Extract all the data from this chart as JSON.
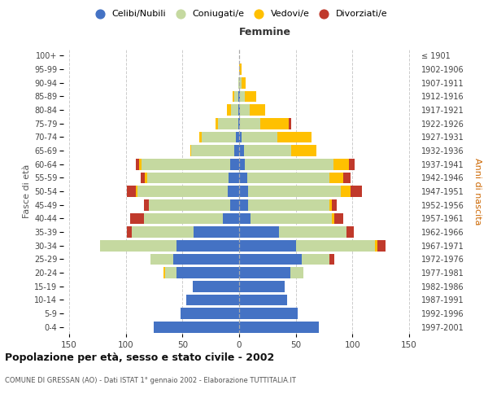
{
  "age_groups": [
    "0-4",
    "5-9",
    "10-14",
    "15-19",
    "20-24",
    "25-29",
    "30-34",
    "35-39",
    "40-44",
    "45-49",
    "50-54",
    "55-59",
    "60-64",
    "65-69",
    "70-74",
    "75-79",
    "80-84",
    "85-89",
    "90-94",
    "95-99",
    "100+"
  ],
  "birth_years": [
    "1997-2001",
    "1992-1996",
    "1987-1991",
    "1982-1986",
    "1977-1981",
    "1972-1976",
    "1967-1971",
    "1962-1966",
    "1957-1961",
    "1952-1956",
    "1947-1951",
    "1942-1946",
    "1937-1941",
    "1932-1936",
    "1927-1931",
    "1922-1926",
    "1917-1921",
    "1912-1916",
    "1907-1911",
    "1902-1906",
    "≤ 1901"
  ],
  "males": {
    "celibi": [
      75,
      52,
      47,
      41,
      55,
      58,
      55,
      40,
      14,
      8,
      10,
      9,
      8,
      4,
      3,
      1,
      1,
      1,
      0,
      0,
      0
    ],
    "coniugati": [
      0,
      0,
      0,
      0,
      10,
      20,
      68,
      55,
      70,
      72,
      80,
      72,
      78,
      38,
      30,
      18,
      6,
      3,
      1,
      0,
      0
    ],
    "vedovi": [
      0,
      0,
      0,
      0,
      2,
      0,
      0,
      0,
      0,
      0,
      1,
      2,
      2,
      1,
      2,
      2,
      4,
      2,
      0,
      0,
      0
    ],
    "divorziati": [
      0,
      0,
      0,
      0,
      0,
      0,
      0,
      4,
      12,
      4,
      8,
      4,
      3,
      0,
      0,
      0,
      0,
      0,
      0,
      0,
      0
    ]
  },
  "females": {
    "nubili": [
      70,
      52,
      42,
      40,
      45,
      55,
      50,
      35,
      10,
      8,
      8,
      7,
      5,
      4,
      2,
      1,
      1,
      1,
      0,
      0,
      0
    ],
    "coniugate": [
      0,
      0,
      0,
      0,
      12,
      25,
      70,
      60,
      72,
      72,
      82,
      73,
      78,
      42,
      32,
      18,
      8,
      4,
      2,
      0,
      0
    ],
    "vedove": [
      0,
      0,
      0,
      0,
      0,
      0,
      2,
      0,
      2,
      2,
      8,
      12,
      14,
      22,
      30,
      25,
      14,
      10,
      4,
      2,
      0
    ],
    "divorziate": [
      0,
      0,
      0,
      0,
      0,
      4,
      7,
      6,
      8,
      4,
      10,
      6,
      5,
      0,
      0,
      2,
      0,
      0,
      0,
      0,
      0
    ]
  },
  "colors": {
    "celibi": "#4472c4",
    "coniugati": "#c5d9a0",
    "vedovi": "#ffc000",
    "divorziati": "#c0392b"
  },
  "xlim": 155,
  "title": "Popolazione per età, sesso e stato civile - 2002",
  "subtitle": "COMUNE DI GRESSAN (AO) - Dati ISTAT 1° gennaio 2002 - Elaborazione TUTTITALIA.IT",
  "ylabel_left": "Fasce di età",
  "ylabel_right": "Anni di nascita",
  "xlabel_females": "Femmine",
  "legend_labels": [
    "Celibi/Nubili",
    "Coniugati/e",
    "Vedovi/e",
    "Divorziati/e"
  ],
  "bg_color": "#ffffff",
  "grid_color": "#cccccc"
}
